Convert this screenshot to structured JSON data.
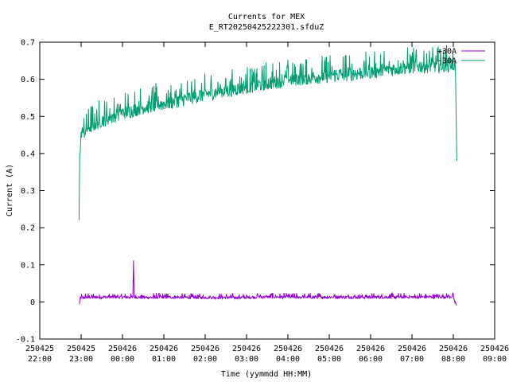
{
  "chart_data": {
    "type": "line",
    "title": "Currents for MEX",
    "subtitle": "E_RT20250425222301.sfduZ",
    "xlabel": "Time (yymmdd HH:MM)",
    "ylabel": "Current (A)",
    "ylim": [
      -0.1,
      0.7
    ],
    "yticks": [
      -0.1,
      0,
      0.1,
      0.2,
      0.3,
      0.4,
      0.5,
      0.6,
      0.7
    ],
    "ytick_labels": [
      "-0.1",
      "0",
      "0.1",
      "0.2",
      "0.3",
      "0.4",
      "0.5",
      "0.6",
      "0.7"
    ],
    "xlim": [
      "250425 22:00",
      "250426 09:00"
    ],
    "xtick_labels": [
      [
        "250425",
        "22:00"
      ],
      [
        "250425",
        "23:00"
      ],
      [
        "250426",
        "00:00"
      ],
      [
        "250426",
        "01:00"
      ],
      [
        "250426",
        "02:00"
      ],
      [
        "250426",
        "03:00"
      ],
      [
        "250426",
        "04:00"
      ],
      [
        "250426",
        "05:00"
      ],
      [
        "250426",
        "06:00"
      ],
      [
        "250426",
        "07:00"
      ],
      [
        "250426",
        "08:00"
      ],
      [
        "250426",
        "09:00"
      ]
    ],
    "grid": false,
    "legend_position": "top-right",
    "series": [
      {
        "name": "+30A",
        "color": "#9400d3",
        "x": [
          "250425 22:57",
          "250425 23:00",
          "250425 23:30",
          "250426 00:00",
          "250426 00:15",
          "250426 00:16",
          "250426 00:17",
          "250426 00:30",
          "250426 01:00",
          "250426 02:00",
          "250426 03:00",
          "250426 03:20",
          "250426 04:00",
          "250426 05:00",
          "250426 06:00",
          "250426 07:00",
          "250426 08:00",
          "250426 08:03",
          "250426 08:05"
        ],
        "y": [
          -0.007,
          0.012,
          0.013,
          0.013,
          0.013,
          0.112,
          0.013,
          0.012,
          0.013,
          0.012,
          0.012,
          0.014,
          0.013,
          0.013,
          0.013,
          0.013,
          0.014,
          -0.007,
          -0.007
        ],
        "noise": 0.004
      },
      {
        "name": "-30A",
        "color": "#009e73",
        "x": [
          "250425 22:57",
          "250425 22:58",
          "250425 23:00",
          "250425 23:10",
          "250425 23:30",
          "250426 00:00",
          "250426 00:30",
          "250426 01:00",
          "250426 02:00",
          "250426 03:00",
          "250426 04:00",
          "250426 05:00",
          "250426 06:00",
          "250426 07:00",
          "250426 08:00",
          "250426 08:03",
          "250426 08:05"
        ],
        "y": [
          0.22,
          0.4,
          0.45,
          0.47,
          0.49,
          0.51,
          0.525,
          0.535,
          0.56,
          0.58,
          0.6,
          0.61,
          0.62,
          0.635,
          0.64,
          0.64,
          0.38
        ],
        "noise": 0.02
      }
    ]
  }
}
